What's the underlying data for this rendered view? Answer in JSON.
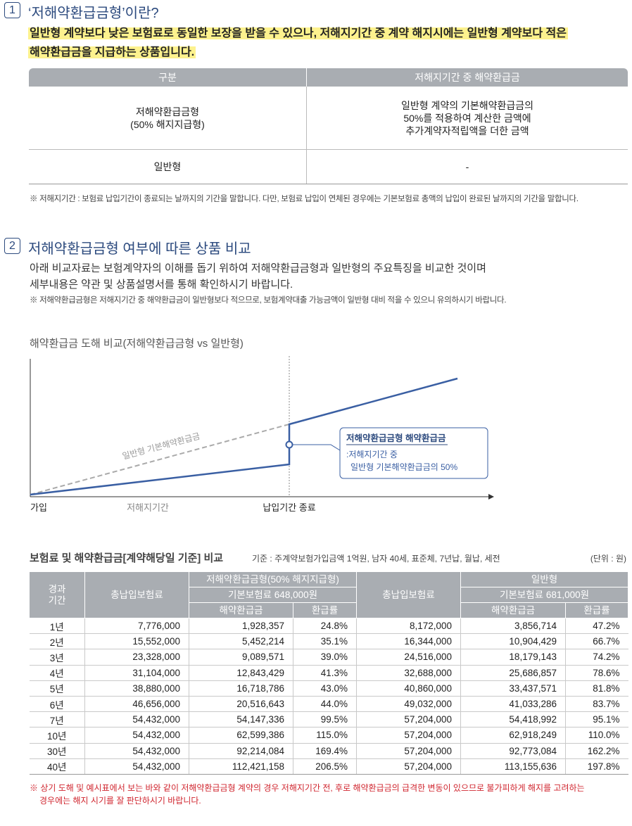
{
  "section1": {
    "number": "1",
    "title": "‘저해약환급금형’이란?",
    "highlight": [
      "일반형 계약보다 낮은 보험료로 동일한 보장을 받을 수 있으나, 저해지기간 중 계약 해지시에는 일반형 계약보다 적은",
      "해약환급금을 지급하는 상품입니다."
    ],
    "table": {
      "headers": [
        "구분",
        "저해지기간 중 해약환급금"
      ],
      "rows": [
        [
          [
            "저해약환급금형",
            "(50% 해지지급형)"
          ],
          [
            "일반형 계약의 기본해약환급금의",
            "50%를 적용하여 계산한 금액에",
            "추가계약자적립액을 더한 금액"
          ]
        ],
        [
          [
            "일반형"
          ],
          [
            "-"
          ]
        ]
      ]
    },
    "note": "※ 저해지기간 : 보험료 납입기간이 종료되는 날까지의 기간을 말합니다. 다만, 보험료 납입이 연체된 경우에는 기본보험료 총액의 납입이 완료된 날까지의 기간을 말합니다."
  },
  "section2": {
    "number": "2",
    "title": "저해약환급금형 여부에 따른 상품 비교",
    "intro": [
      "아래 비교자료는 보험계약자의 이해를 돕기 위하여 저해약환급금형과 일반형의 주요특징을 비교한 것이며",
      "세부내용은 약관 및 상품설명서를 통해 확인하시기 바랍니다."
    ],
    "note": "※ 저해약환급금형은 저해지기간 중 해약환급금이 일반형보다 적으므로, 보험계약대출 가능금액이 일반형 대비 적을 수 있으니 유의하시기 바랍니다."
  },
  "diagram": {
    "title": "해약환급금 도해 비교(저해약환급금형 vs 일반형)",
    "dashed_label": "일반형 기본해약환급금",
    "callout_title": "저해약환급금형 해약환급금",
    "callout_lines": [
      ":저해지기간 중",
      "일반형 기본해약환급금의 50%"
    ],
    "x_labels": [
      "가입",
      "저해지기간",
      "납입기간 종료"
    ]
  },
  "comparison": {
    "title": "보험료 및 해약환급금[계약해당일 기준] 비교",
    "basis": "기준 : 주계약보험가입금액 1억원, 남자 40세, 표준체, 7년납, 월납, 세전",
    "unit": "(단위 : 원)",
    "header": {
      "period": [
        "경과",
        "기간"
      ],
      "total_premium": "총납입보험료",
      "low_type": "저해약환급금형(50% 해지지급형)",
      "low_premium": "기본보험료 648,000원",
      "general_type": "일반형",
      "general_premium": "기본보험료 681,000원",
      "refund": "해약환급금",
      "rate": "환급률"
    },
    "rows": [
      [
        "1년",
        "7,776,000",
        "1,928,357",
        "24.8%",
        "8,172,000",
        "3,856,714",
        "47.2%"
      ],
      [
        "2년",
        "15,552,000",
        "5,452,214",
        "35.1%",
        "16,344,000",
        "10,904,429",
        "66.7%"
      ],
      [
        "3년",
        "23,328,000",
        "9,089,571",
        "39.0%",
        "24,516,000",
        "18,179,143",
        "74.2%"
      ],
      [
        "4년",
        "31,104,000",
        "12,843,429",
        "41.3%",
        "32,688,000",
        "25,686,857",
        "78.6%"
      ],
      [
        "5년",
        "38,880,000",
        "16,718,786",
        "43.0%",
        "40,860,000",
        "33,437,571",
        "81.8%"
      ],
      [
        "6년",
        "46,656,000",
        "20,516,643",
        "44.0%",
        "49,032,000",
        "41,033,286",
        "83.7%"
      ],
      [
        "7년",
        "54,432,000",
        "54,147,336",
        "99.5%",
        "57,204,000",
        "54,418,992",
        "95.1%"
      ],
      [
        "10년",
        "54,432,000",
        "62,599,386",
        "115.0%",
        "57,204,000",
        "62,918,249",
        "110.0%"
      ],
      [
        "30년",
        "54,432,000",
        "92,214,084",
        "169.4%",
        "57,204,000",
        "92,773,084",
        "162.2%"
      ],
      [
        "40년",
        "54,432,000",
        "112,421,158",
        "206.5%",
        "57,204,000",
        "113,155,636",
        "197.8%"
      ]
    ],
    "warning": [
      "※ 상기 도해 및 예시표에서 보는 바와 같이 저해약환급금형 계약의 경우 저해지기간 전, 후로 해약환급금의 급격한 변동이 있으므로 불가피하게 해지를 고려하는",
      "경우에는 해지 시기를 잘 판단하시기 바랍니다."
    ]
  }
}
